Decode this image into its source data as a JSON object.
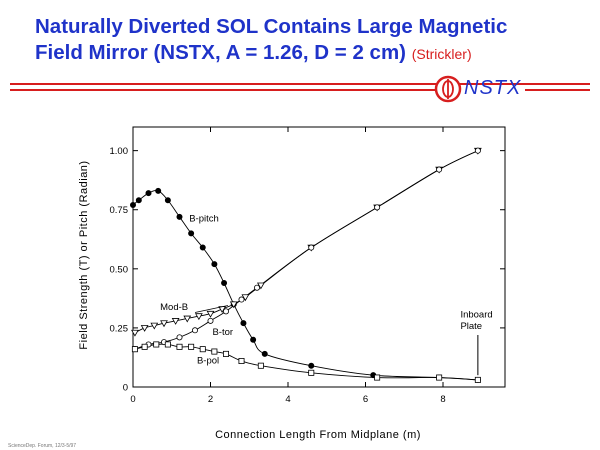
{
  "header": {
    "title_line1": "Naturally Diverted SOL Contains Large Magnetic",
    "title_line2": "Field Mirror (NSTX, A = 1.26, D = 2 cm)",
    "credit": "(Strickler)",
    "logo_text": "NSTX"
  },
  "footer": {
    "text": "ScienceDep. Forum, 12/3-5/97"
  },
  "colors": {
    "title": "#1f33c9",
    "rule": "#d71e1e"
  },
  "chart_data": {
    "type": "line",
    "title": "",
    "xlabel": "Connection Length From Midplane (m)",
    "ylabel": "Field Strength (T) or Pitch (Radian)",
    "xlim": [
      0,
      9.6
    ],
    "ylim": [
      0,
      1.1
    ],
    "x_ticks": [
      0,
      2,
      4,
      6,
      8
    ],
    "x_tick_labels": [
      "0",
      "2",
      "4",
      "6",
      "8"
    ],
    "y_ticks": [
      0,
      0.25,
      0.5,
      0.75,
      1.0
    ],
    "y_tick_labels": [
      "0",
      "0.25",
      "0.50",
      "0.75",
      "1.00"
    ],
    "grid": false,
    "series": [
      {
        "name": "B-pitch",
        "marker": "filled-circle",
        "x": [
          0.0,
          0.15,
          0.4,
          0.65,
          0.9,
          1.2,
          1.5,
          1.8,
          2.1,
          2.35,
          2.6,
          2.85,
          3.1,
          3.4,
          4.6,
          6.2,
          7.9,
          8.9
        ],
        "y": [
          0.77,
          0.79,
          0.82,
          0.83,
          0.79,
          0.72,
          0.65,
          0.59,
          0.52,
          0.44,
          0.35,
          0.27,
          0.2,
          0.14,
          0.09,
          0.05,
          0.04,
          0.03
        ]
      },
      {
        "name": "Mod-B",
        "marker": "open-triangle-down",
        "x": [
          0.05,
          0.3,
          0.55,
          0.8,
          1.1,
          1.4,
          1.7,
          2.0,
          2.3,
          2.6,
          2.9,
          3.3,
          4.6,
          6.3,
          7.9,
          8.9
        ],
        "y": [
          0.23,
          0.25,
          0.26,
          0.27,
          0.28,
          0.29,
          0.3,
          0.31,
          0.33,
          0.35,
          0.38,
          0.43,
          0.59,
          0.76,
          0.92,
          1.0
        ]
      },
      {
        "name": "B-tor",
        "marker": "open-circle",
        "x": [
          0.05,
          0.4,
          0.8,
          1.2,
          1.6,
          2.0,
          2.4,
          2.8,
          3.2,
          4.6,
          6.3,
          7.9,
          8.9
        ],
        "y": [
          0.16,
          0.18,
          0.19,
          0.21,
          0.24,
          0.28,
          0.32,
          0.37,
          0.42,
          0.59,
          0.76,
          0.92,
          1.0
        ]
      },
      {
        "name": "B-pol",
        "marker": "open-square",
        "x": [
          0.05,
          0.3,
          0.6,
          0.9,
          1.2,
          1.5,
          1.8,
          2.1,
          2.4,
          2.8,
          3.3,
          4.6,
          6.3,
          7.9,
          8.9
        ],
        "y": [
          0.16,
          0.17,
          0.18,
          0.18,
          0.17,
          0.17,
          0.16,
          0.15,
          0.14,
          0.11,
          0.09,
          0.06,
          0.04,
          0.04,
          0.03
        ]
      }
    ],
    "annotations": [
      {
        "text": "Inboard"
      },
      {
        "text": "Plate"
      }
    ]
  }
}
